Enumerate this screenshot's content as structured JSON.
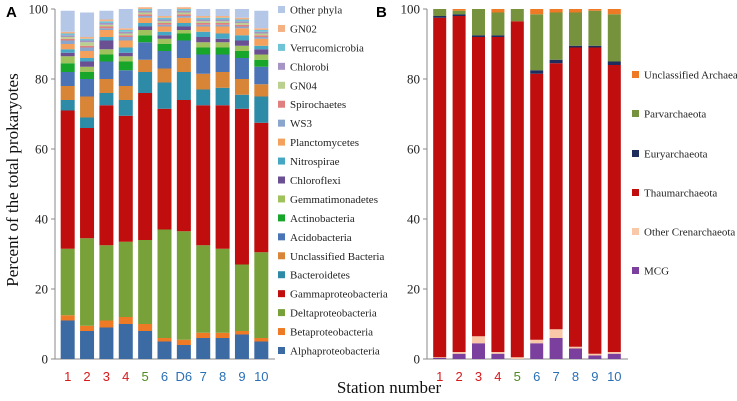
{
  "shared": {
    "ylabel": "Percent of the total prokaryotes",
    "xlabel": "Station number",
    "y_ticks": [
      "0",
      "20",
      "40",
      "60",
      "80",
      "100"
    ],
    "station_colors": {
      "1": "#d7191c",
      "2": "#d7191c",
      "3": "#d7191c",
      "4": "#d7191c",
      "5": "#4e8b1c",
      "6": "#2a6fb6",
      "D6": "#2a6fb6",
      "7": "#2a6fb6",
      "8": "#2a6fb6",
      "9": "#2a6fb6",
      "10": "#2a6fb6"
    }
  },
  "chart_data": [
    {
      "panel": "A",
      "type": "bar",
      "stacked": true,
      "ylim": [
        0,
        100
      ],
      "categories": [
        "1",
        "2",
        "3",
        "4",
        "5",
        "6",
        "D6",
        "7",
        "8",
        "9",
        "10"
      ],
      "series": [
        {
          "name": "Alphaproteobacteria",
          "color": "#3c6aa3",
          "values": [
            11,
            8,
            9,
            10,
            8,
            5,
            4,
            6,
            6,
            7,
            5
          ]
        },
        {
          "name": "Betaproteobacteria",
          "color": "#ee7a25",
          "values": [
            1.5,
            1.5,
            2,
            2,
            2,
            1,
            1.5,
            1.5,
            1.5,
            1,
            1
          ]
        },
        {
          "name": "Deltaproteobacteria",
          "color": "#78a13a",
          "values": [
            19,
            25,
            21.5,
            21.5,
            24,
            31,
            31,
            25,
            24,
            19,
            24.5
          ]
        },
        {
          "name": "Gammaproteobacteria",
          "color": "#c00d0d",
          "values": [
            39.5,
            31.5,
            40,
            36,
            42,
            34.5,
            37.5,
            40,
            41,
            44.5,
            37
          ]
        },
        {
          "name": "Bacteroidetes",
          "color": "#2e8ba7",
          "values": [
            3,
            3,
            3.5,
            4.5,
            6,
            7.5,
            8,
            4.5,
            5,
            4,
            7.5
          ]
        },
        {
          "name": "Unclassified Bacteria",
          "color": "#d88538",
          "values": [
            4,
            6,
            4,
            4,
            3.5,
            4,
            4,
            4.5,
            4.5,
            4.5,
            3.5
          ]
        },
        {
          "name": "Acidobacteria",
          "color": "#4a74b5",
          "values": [
            4,
            5,
            5,
            4.5,
            5,
            5,
            5,
            5.5,
            5,
            6,
            5
          ]
        },
        {
          "name": "Actinobacteria",
          "color": "#17a52a",
          "values": [
            2.5,
            2,
            2,
            2.5,
            2,
            2,
            2,
            2,
            2,
            2,
            2
          ]
        },
        {
          "name": "Gemmatimonadetes",
          "color": "#9fc25d",
          "values": [
            2,
            1.5,
            1.5,
            1.5,
            1.5,
            1.5,
            1,
            1.5,
            1.5,
            1.5,
            1.5
          ]
        },
        {
          "name": "Chloroflexi",
          "color": "#6b4f93",
          "values": [
            1,
            1.5,
            2.5,
            1,
            1,
            1,
            1,
            1.5,
            1,
            1.5,
            1.5
          ]
        },
        {
          "name": "Nitrospirae",
          "color": "#46a7c4",
          "values": [
            1,
            1,
            1,
            1.5,
            1,
            1,
            1,
            1.5,
            1.5,
            1.5,
            1
          ]
        },
        {
          "name": "Planctomycetes",
          "color": "#f3a15c",
          "values": [
            1.5,
            2,
            2,
            2,
            1.5,
            1.5,
            1.5,
            1.5,
            2,
            2,
            2
          ]
        },
        {
          "name": "WS3",
          "color": "#8ba6cc",
          "values": [
            1,
            1,
            0.5,
            1,
            0.5,
            0.5,
            0.5,
            0.5,
            0.5,
            0.5,
            0.5
          ]
        },
        {
          "name": "Spirochaetes",
          "color": "#df7f7f",
          "values": [
            0.5,
            0.5,
            0.5,
            0.5,
            0.5,
            0.5,
            0.5,
            0.5,
            0.5,
            0.5,
            0.5
          ]
        },
        {
          "name": "GN04",
          "color": "#b9d08e",
          "values": [
            0.5,
            1,
            0.5,
            0.5,
            0.5,
            0.5,
            0.5,
            0.5,
            0.5,
            0.5,
            0.5
          ]
        },
        {
          "name": "Chlorobi",
          "color": "#a694c4",
          "values": [
            0.5,
            0.5,
            0.5,
            0.5,
            0.5,
            0.5,
            0.5,
            0.5,
            0.5,
            0.5,
            0.5
          ]
        },
        {
          "name": "Verrucomicrobia",
          "color": "#6fc3d6",
          "values": [
            0.5,
            0.5,
            0.5,
            0.5,
            0.5,
            0.5,
            0.5,
            0.5,
            0.5,
            0.5,
            0.5
          ]
        },
        {
          "name": "GN02",
          "color": "#f4b183",
          "values": [
            0.5,
            0.5,
            0.5,
            0.5,
            0.5,
            0.5,
            0.5,
            0.5,
            0.5,
            0.5,
            0.5
          ]
        },
        {
          "name": "Other phyla",
          "color": "#b4c7e7",
          "values": [
            6,
            7,
            2.5,
            5.5,
            0,
            2,
            0,
            2,
            2,
            2.5,
            5
          ]
        }
      ]
    },
    {
      "panel": "B",
      "type": "bar",
      "stacked": true,
      "ylim": [
        0,
        100
      ],
      "categories": [
        "1",
        "2",
        "3",
        "4",
        "5",
        "6",
        "7",
        "8",
        "9",
        "10"
      ],
      "series": [
        {
          "name": "MCG",
          "color": "#7b3f9e",
          "values": [
            0.3,
            1.5,
            4.5,
            1.5,
            0,
            4.5,
            6,
            3,
            1,
            1.5
          ]
        },
        {
          "name": "Other Crenarchaeota",
          "color": "#f9c8a8",
          "values": [
            0.2,
            0.5,
            2,
            0.5,
            0.5,
            1,
            2.5,
            0.5,
            0.5,
            0.5
          ]
        },
        {
          "name": "Thaumarchaeota",
          "color": "#c00d0d",
          "values": [
            97,
            96,
            85.5,
            90,
            96,
            76,
            76,
            85.5,
            87.5,
            82
          ]
        },
        {
          "name": "Euryarchaeota",
          "color": "#1f2d5c",
          "values": [
            0.5,
            0.5,
            0.5,
            0.5,
            0,
            1,
            1,
            0.5,
            0.5,
            1
          ]
        },
        {
          "name": "Parvarchaeota",
          "color": "#76923c",
          "values": [
            2,
            1,
            7.5,
            6.5,
            3.5,
            16,
            13.5,
            9.5,
            10,
            13.5
          ]
        },
        {
          "name": "Unclassified Archaea",
          "color": "#ee7a25",
          "values": [
            0,
            0.5,
            0,
            1,
            0,
            1.5,
            1,
            1,
            0.5,
            1.5
          ]
        }
      ]
    }
  ]
}
